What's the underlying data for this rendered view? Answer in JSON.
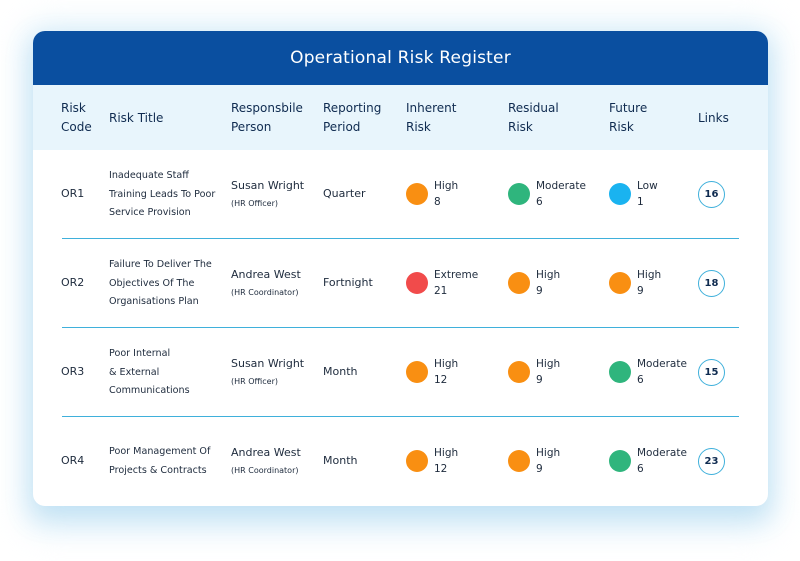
{
  "title": "Operational Risk Register",
  "headers": {
    "code": [
      "Risk",
      "Code"
    ],
    "title": "Risk Title",
    "person": [
      "Responsbile",
      "Person"
    ],
    "period": [
      "Reporting",
      "Period"
    ],
    "inherent": [
      "Inherent",
      "Risk"
    ],
    "residual": [
      "Residual",
      "Risk"
    ],
    "future": [
      "Future",
      "Risk"
    ],
    "links": "Links"
  },
  "colors": {
    "header_bar": "#0a4fa0",
    "header_row": "#e8f5fc",
    "divider": "#3fb0db",
    "extreme": "#f14b4b",
    "high": "#f98f12",
    "moderate": "#2fb57d",
    "low": "#1ab3f0"
  },
  "rows": [
    {
      "code": "OR1",
      "title_lines": [
        "Inadequate Staff",
        "Training Leads To Poor",
        "Service Provision"
      ],
      "person": "Susan Wright",
      "role": "(HR Officer)",
      "period": "Quarter",
      "inherent": {
        "level": "High",
        "score": "8"
      },
      "residual": {
        "level": "Moderate",
        "score": "6"
      },
      "future": {
        "level": "Low",
        "score": "1"
      },
      "links": "16"
    },
    {
      "code": "OR2",
      "title_lines": [
        "Failure To Deliver The",
        "Objectives Of The",
        "Organisations Plan"
      ],
      "person": "Andrea West",
      "role": "(HR Coordinator)",
      "period": "Fortnight",
      "inherent": {
        "level": "Extreme",
        "score": "21"
      },
      "residual": {
        "level": "High",
        "score": "9"
      },
      "future": {
        "level": "High",
        "score": "9"
      },
      "links": "18"
    },
    {
      "code": "OR3",
      "title_lines": [
        "Poor Internal",
        "& External",
        "Communications"
      ],
      "person": "Susan Wright",
      "role": "(HR Officer)",
      "period": "Month",
      "inherent": {
        "level": "High",
        "score": "12"
      },
      "residual": {
        "level": "High",
        "score": "9"
      },
      "future": {
        "level": "Moderate",
        "score": "6"
      },
      "links": "15"
    },
    {
      "code": "OR4",
      "title_lines": [
        "Poor Management Of",
        "Projects & Contracts"
      ],
      "person": "Andrea West",
      "role": "(HR Coordinator)",
      "period": "Month",
      "inherent": {
        "level": "High",
        "score": "12"
      },
      "residual": {
        "level": "High",
        "score": "9"
      },
      "future": {
        "level": "Moderate",
        "score": "6"
      },
      "links": "23"
    }
  ]
}
